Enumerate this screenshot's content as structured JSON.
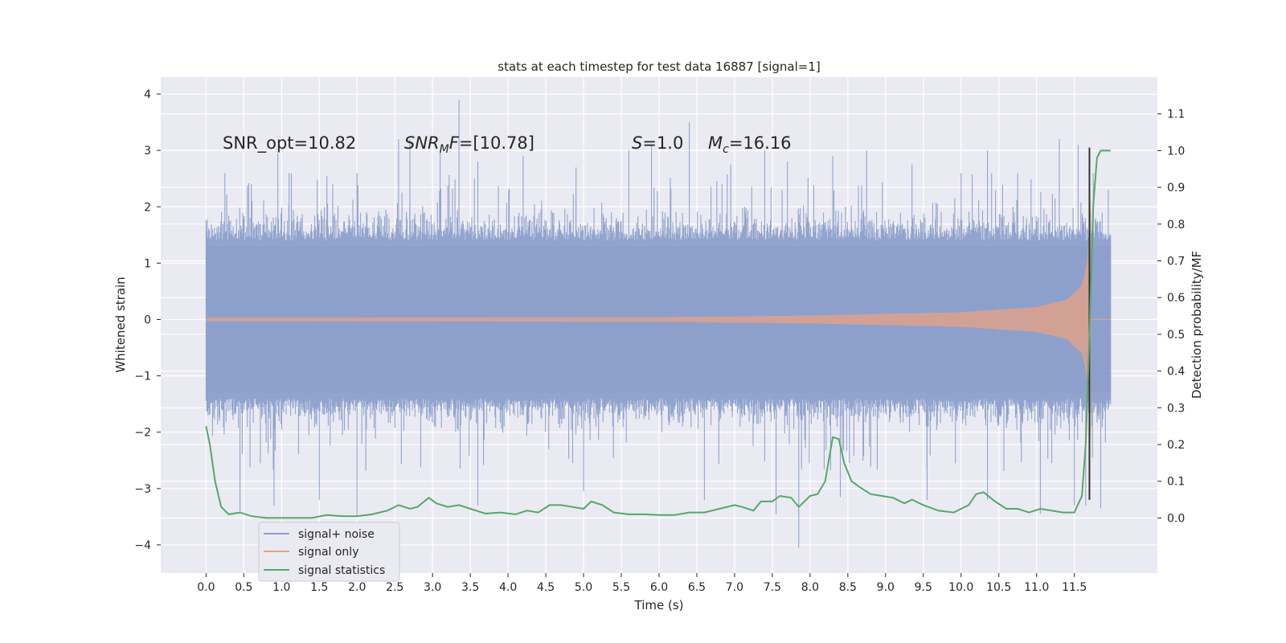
{
  "chart_data": {
    "type": "line",
    "title": "stats at each timestep for test data 16887 [signal=1]",
    "xlabel": "Time (s)",
    "ylabel": "Whitened strain",
    "y2label": "Detection probability/MF",
    "xlim": [
      -0.6,
      12.6
    ],
    "ylim": [
      -4.5,
      4.3
    ],
    "y2lim": [
      -0.15,
      1.2
    ],
    "grid": true,
    "legend_position": "lower-left",
    "x_ticks": [
      "0.0",
      "0.5",
      "1.0",
      "1.5",
      "2.0",
      "2.5",
      "3.0",
      "3.5",
      "4.0",
      "4.5",
      "5.0",
      "5.5",
      "6.0",
      "6.5",
      "7.0",
      "7.5",
      "8.0",
      "8.5",
      "9.0",
      "9.5",
      "10.0",
      "10.5",
      "11.0",
      "11.5"
    ],
    "y_ticks": [
      "4",
      "3",
      "2",
      "1",
      "0",
      "−1",
      "−2",
      "−3",
      "−4"
    ],
    "y2_ticks": [
      "1.1",
      "1.0",
      "0.9",
      "0.8",
      "0.7",
      "0.6",
      "0.5",
      "0.4",
      "0.3",
      "0.2",
      "0.1",
      "0.0"
    ],
    "annotations": {
      "snr_opt": "SNR_opt=10.82",
      "snr_mf_sym": "SNR",
      "snr_mf_sub": "M",
      "snr_mf_rest_sym": "F",
      "snr_mf_value": "=[10.78]",
      "s_sym": "S",
      "s_value": "=1.0",
      "mc_sym": "M",
      "mc_sub": "c",
      "mc_value": "=16.16"
    },
    "vertical_marker_x": 11.7,
    "series": [
      {
        "name": "signal+ noise",
        "color": "#8da0cb",
        "x_range": [
          0.0,
          11.98
        ],
        "y_range_typical": [
          -1.8,
          1.8
        ],
        "y_extremes": [
          -4.05,
          3.9
        ],
        "y_peaks": [
          [
            0.25,
            2.6
          ],
          [
            0.6,
            2.4
          ],
          [
            0.95,
            2.95
          ],
          [
            1.1,
            2.6
          ],
          [
            1.6,
            2.55
          ],
          [
            2.0,
            2.6
          ],
          [
            2.55,
            3.2
          ],
          [
            2.7,
            3.2
          ],
          [
            3.1,
            3.0
          ],
          [
            3.35,
            3.9
          ],
          [
            3.6,
            2.8
          ],
          [
            4.2,
            2.9
          ],
          [
            4.9,
            2.7
          ],
          [
            5.6,
            3.0
          ],
          [
            5.9,
            3.1
          ],
          [
            6.4,
            3.5
          ],
          [
            6.95,
            2.75
          ],
          [
            7.4,
            3.0
          ],
          [
            7.7,
            2.8
          ],
          [
            8.3,
            2.9
          ],
          [
            8.75,
            3.0
          ],
          [
            9.35,
            2.75
          ],
          [
            10.0,
            2.6
          ],
          [
            10.35,
            3.0
          ],
          [
            10.75,
            2.6
          ],
          [
            11.3,
            3.2
          ],
          [
            11.55,
            3.1
          ],
          [
            11.75,
            2.6
          ],
          [
            11.95,
            2.3
          ]
        ],
        "y_troughs": [
          [
            0.45,
            -3.4
          ],
          [
            0.9,
            -3.3
          ],
          [
            1.5,
            -3.2
          ],
          [
            2.0,
            -3.5
          ],
          [
            3.6,
            -3.3
          ],
          [
            5.0,
            -3.05
          ],
          [
            6.6,
            -3.2
          ],
          [
            7.55,
            -3.45
          ],
          [
            7.85,
            -4.05
          ],
          [
            8.4,
            -3.15
          ],
          [
            9.55,
            -3.2
          ],
          [
            10.35,
            -3.2
          ],
          [
            11.05,
            -3.45
          ],
          [
            11.5,
            -3.3
          ],
          [
            11.65,
            -3.3
          ],
          [
            11.85,
            -3.35
          ]
        ]
      },
      {
        "name": "signal only",
        "color": "#e9a183",
        "description_envelope": [
          [
            0.0,
            0.03
          ],
          [
            6.0,
            0.04
          ],
          [
            8.0,
            0.07
          ],
          [
            10.0,
            0.13
          ],
          [
            11.0,
            0.22
          ],
          [
            11.4,
            0.35
          ],
          [
            11.6,
            0.6
          ],
          [
            11.68,
            1.1
          ],
          [
            11.72,
            2.2
          ]
        ],
        "peak_amplitude": 2.2
      },
      {
        "name": "signal statistics",
        "color": "#55a868",
        "axis": "right",
        "x": [
          0.0,
          0.05,
          0.12,
          0.2,
          0.3,
          0.45,
          0.6,
          0.8,
          1.0,
          1.2,
          1.4,
          1.6,
          1.8,
          2.0,
          2.2,
          2.4,
          2.55,
          2.7,
          2.8,
          2.95,
          3.05,
          3.2,
          3.35,
          3.5,
          3.7,
          3.9,
          4.1,
          4.25,
          4.4,
          4.55,
          4.7,
          4.85,
          5.0,
          5.1,
          5.25,
          5.4,
          5.6,
          5.8,
          6.0,
          6.2,
          6.4,
          6.6,
          6.8,
          7.0,
          7.1,
          7.25,
          7.35,
          7.5,
          7.6,
          7.75,
          7.85,
          8.0,
          8.1,
          8.2,
          8.3,
          8.38,
          8.45,
          8.55,
          8.65,
          8.8,
          8.95,
          9.1,
          9.25,
          9.35,
          9.5,
          9.7,
          9.9,
          10.1,
          10.2,
          10.3,
          10.45,
          10.6,
          10.75,
          10.9,
          11.05,
          11.2,
          11.35,
          11.5,
          11.6,
          11.65,
          11.7,
          11.75,
          11.8,
          11.85,
          11.9,
          11.98
        ],
        "y": [
          0.25,
          0.2,
          0.1,
          0.03,
          0.01,
          0.015,
          0.005,
          0.0,
          0.0,
          0.0,
          0.0,
          0.008,
          0.005,
          0.005,
          0.01,
          0.02,
          0.035,
          0.025,
          0.03,
          0.055,
          0.04,
          0.03,
          0.035,
          0.025,
          0.012,
          0.015,
          0.01,
          0.02,
          0.015,
          0.035,
          0.035,
          0.03,
          0.025,
          0.045,
          0.035,
          0.015,
          0.01,
          0.01,
          0.008,
          0.008,
          0.015,
          0.015,
          0.025,
          0.035,
          0.03,
          0.02,
          0.045,
          0.045,
          0.06,
          0.055,
          0.03,
          0.06,
          0.065,
          0.1,
          0.22,
          0.215,
          0.15,
          0.1,
          0.085,
          0.065,
          0.06,
          0.055,
          0.04,
          0.05,
          0.035,
          0.02,
          0.015,
          0.035,
          0.065,
          0.07,
          0.045,
          0.025,
          0.025,
          0.015,
          0.025,
          0.02,
          0.015,
          0.015,
          0.06,
          0.2,
          0.5,
          0.85,
          0.98,
          1.0,
          1.0,
          1.0
        ]
      }
    ]
  }
}
